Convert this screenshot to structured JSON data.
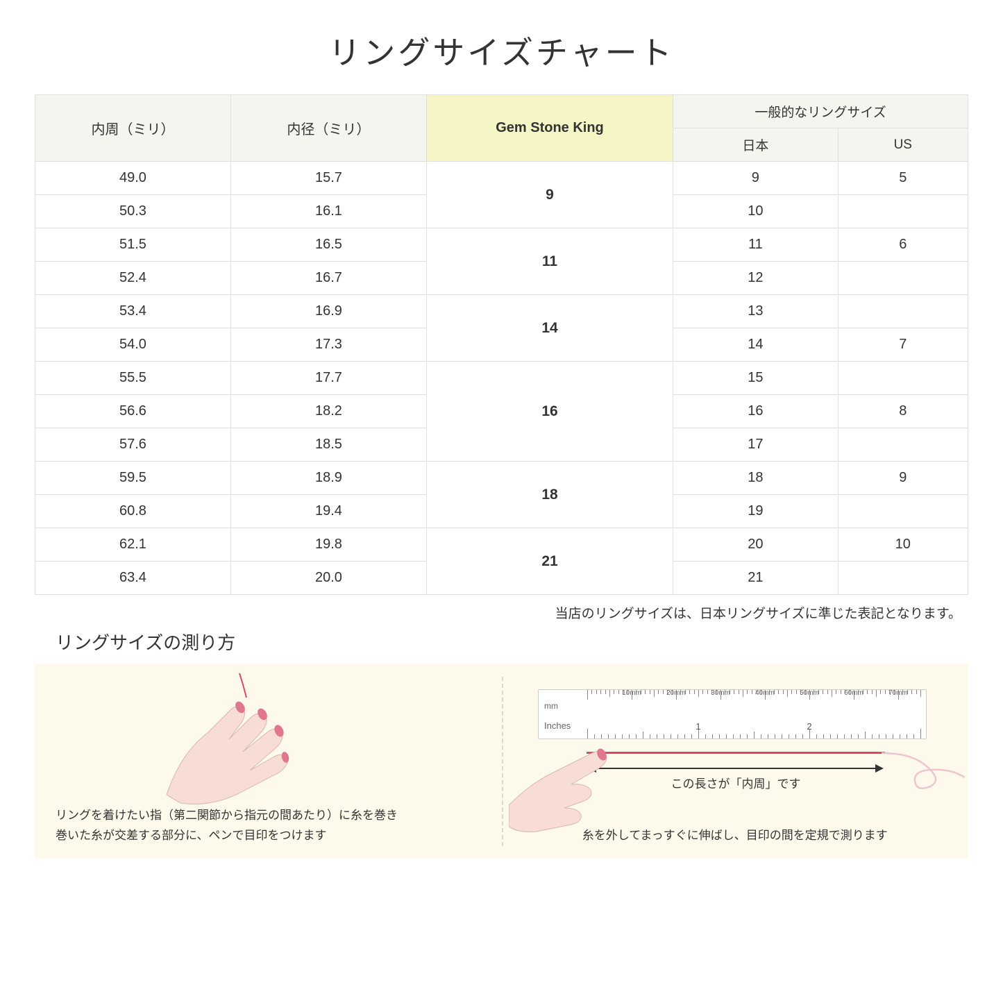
{
  "title": "リングサイズチャート",
  "headers": {
    "circumference": "内周（ミリ）",
    "diameter": "内径（ミリ）",
    "gem": "Gem Stone King",
    "general": "一般的なリングサイズ",
    "japan": "日本",
    "us": "US"
  },
  "groups": [
    {
      "gem": "9",
      "rows": [
        {
          "c": "49.0",
          "d": "15.7",
          "jp": "9",
          "us": "5"
        },
        {
          "c": "50.3",
          "d": "16.1",
          "jp": "10",
          "us": ""
        }
      ]
    },
    {
      "gem": "11",
      "rows": [
        {
          "c": "51.5",
          "d": "16.5",
          "jp": "11",
          "us": "6"
        },
        {
          "c": "52.4",
          "d": "16.7",
          "jp": "12",
          "us": ""
        }
      ]
    },
    {
      "gem": "14",
      "rows": [
        {
          "c": "53.4",
          "d": "16.9",
          "jp": "13",
          "us": ""
        },
        {
          "c": "54.0",
          "d": "17.3",
          "jp": "14",
          "us": "7"
        }
      ]
    },
    {
      "gem": "16",
      "rows": [
        {
          "c": "55.5",
          "d": "17.7",
          "jp": "15",
          "us": ""
        },
        {
          "c": "56.6",
          "d": "18.2",
          "jp": "16",
          "us": "8"
        },
        {
          "c": "57.6",
          "d": "18.5",
          "jp": "17",
          "us": ""
        }
      ]
    },
    {
      "gem": "18",
      "rows": [
        {
          "c": "59.5",
          "d": "18.9",
          "jp": "18",
          "us": "9"
        },
        {
          "c": "60.8",
          "d": "19.4",
          "jp": "19",
          "us": ""
        }
      ]
    },
    {
      "gem": "21",
      "rows": [
        {
          "c": "62.1",
          "d": "19.8",
          "jp": "20",
          "us": "10"
        },
        {
          "c": "63.4",
          "d": "20.0",
          "jp": "21",
          "us": ""
        }
      ]
    }
  ],
  "note": "当店のリングサイズは、日本リングサイズに準じた表記となります。",
  "measure_title": "リングサイズの測り方",
  "panel1_line1": "リングを着けたい指（第二関節から指元の間あたり）に糸を巻き",
  "panel1_line2": "巻いた糸が交差する部分に、ペンで目印をつけます",
  "panel2_arrow": "この長さが「内周」です",
  "panel2_text": "糸を外してまっすぐに伸ばし、目印の間を定規で測ります",
  "ruler": {
    "mm_label": "mm",
    "in_label": "Inches",
    "mm_marks": [
      "10mm",
      "20mm",
      "30mm",
      "40mm",
      "50mm",
      "60mm",
      "70mm"
    ],
    "in_numbers": [
      "1",
      "2"
    ]
  },
  "colors": {
    "header_bg": "#f5f5f0",
    "highlight_bg": "#f5f5c5",
    "border": "#e0e0e0",
    "info_bg": "#fdfaec",
    "thread": "#d94a6a",
    "skin": "#f8ddd4",
    "nail": "#e0788d"
  }
}
